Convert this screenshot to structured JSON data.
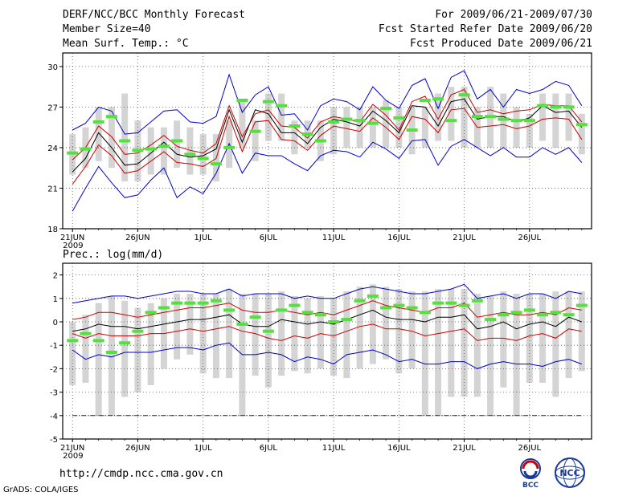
{
  "header": {
    "title": "DERF/NCC/BCC Monthly Forecast",
    "member_size": "Member Size=40",
    "variable": "Mean Surf. Temp.: °C",
    "period": "For 2009/06/21-2009/07/30",
    "started": "Fcst Started Refer Date 2009/06/20",
    "produced": "Fcst Produced Date 2009/06/21"
  },
  "footer": {
    "url": "http://cmdp.ncc.cma.gov.cn",
    "credit": "GrADS: COLA/IGES",
    "logo_bcc": "BCC",
    "logo_ncc": "NCC"
  },
  "colors": {
    "band": "#d4d4d4",
    "median": "#000000",
    "quartile": "#cc0000",
    "extreme": "#0000cc",
    "marker": "#55e040",
    "grid": "#555555"
  },
  "chart_data": [
    {
      "type": "line",
      "title": "Mean Surf. Temp.: °C",
      "x_labels": [
        "21JUN",
        "26JUN",
        "1JUL",
        "6JUL",
        "11JUL",
        "16JUL",
        "21JUL",
        "26JUL"
      ],
      "x_year": "2009",
      "days": 40,
      "ylim": [
        18,
        31
      ],
      "yticks": [
        18,
        21,
        24,
        27,
        30
      ],
      "band_low": [
        22.0,
        22.5,
        23.0,
        22.5,
        21.5,
        21.5,
        22.0,
        22.0,
        22.5,
        22.0,
        22.0,
        21.5,
        22.5,
        24.0,
        23.0,
        24.5,
        24.5,
        23.5,
        24.0,
        23.0,
        23.5,
        24.0,
        24.0,
        24.0,
        24.0,
        24.0,
        23.5,
        24.0,
        24.5,
        24.5,
        24.0,
        24.0,
        24.0,
        24.0,
        24.0,
        24.0,
        24.5,
        24.0,
        24.5,
        23.5
      ],
      "band_high": [
        25.0,
        25.5,
        27.0,
        27.0,
        28.0,
        26.0,
        25.5,
        25.5,
        26.0,
        25.5,
        25.0,
        25.0,
        26.0,
        27.5,
        26.0,
        28.0,
        28.0,
        26.0,
        26.0,
        26.0,
        27.0,
        27.0,
        27.0,
        27.0,
        27.5,
        27.0,
        27.0,
        27.0,
        28.0,
        28.5,
        28.5,
        27.0,
        28.5,
        28.0,
        27.0,
        26.5,
        28.0,
        28.0,
        28.0,
        26.5
      ],
      "extreme_max": [
        25.3,
        25.8,
        27.0,
        26.7,
        25.0,
        25.1,
        25.9,
        26.7,
        26.8,
        25.9,
        25.8,
        26.3,
        29.4,
        26.6,
        27.9,
        28.5,
        26.4,
        26.5,
        25.3,
        27.1,
        27.6,
        27.4,
        26.8,
        28.5,
        27.5,
        26.9,
        28.6,
        29.1,
        26.9,
        29.2,
        29.7,
        27.6,
        28.3,
        27.0,
        28.3,
        28.0,
        28.3,
        28.9,
        28.6,
        27.1
      ],
      "q_high": [
        23.1,
        24.0,
        25.6,
        24.8,
        23.5,
        23.6,
        24.2,
        24.9,
        24.1,
        23.8,
        23.6,
        24.3,
        27.1,
        24.8,
        26.5,
        26.8,
        25.6,
        25.5,
        24.7,
        25.9,
        26.3,
        26.1,
        25.9,
        27.2,
        26.4,
        25.3,
        27.4,
        27.8,
        26.1,
        27.9,
        28.3,
        26.6,
        26.8,
        26.5,
        26.7,
        26.8,
        27.2,
        27.1,
        27.1,
        25.9
      ],
      "median": [
        22.2,
        23.2,
        25.1,
        24.0,
        22.7,
        22.8,
        23.6,
        24.4,
        23.5,
        23.3,
        23.4,
        23.9,
        26.8,
        24.4,
        26.8,
        26.5,
        25.1,
        25.1,
        24.3,
        25.5,
        26.1,
        25.9,
        25.6,
        26.7,
        26.0,
        25.1,
        27.1,
        27.0,
        25.6,
        27.4,
        27.6,
        26.1,
        26.3,
        26.3,
        25.9,
        26.2,
        27.1,
        26.6,
        26.7,
        25.5
      ],
      "q_low": [
        21.3,
        22.6,
        24.2,
        23.4,
        22.1,
        22.3,
        23.0,
        23.7,
        22.9,
        22.8,
        22.6,
        23.2,
        26.3,
        23.7,
        25.9,
        26.0,
        24.6,
        24.5,
        23.8,
        24.9,
        25.6,
        25.4,
        25.2,
        26.2,
        25.5,
        24.6,
        26.3,
        26.1,
        25.1,
        26.8,
        26.9,
        25.5,
        25.6,
        25.7,
        25.4,
        25.6,
        26.1,
        26.2,
        26.1,
        24.6
      ],
      "extreme_min": [
        19.3,
        21.0,
        22.6,
        21.4,
        20.3,
        20.5,
        21.6,
        22.5,
        20.3,
        21.1,
        20.6,
        22.1,
        24.3,
        22.1,
        23.6,
        23.4,
        23.4,
        22.8,
        22.3,
        23.4,
        23.8,
        23.7,
        23.3,
        24.4,
        23.9,
        23.2,
        24.5,
        24.6,
        22.7,
        24.1,
        24.6,
        24.0,
        23.4,
        24.0,
        23.3,
        23.3,
        24.0,
        23.5,
        24.0,
        22.9
      ],
      "markers": [
        23.6,
        23.9,
        25.9,
        26.3,
        24.5,
        23.8,
        23.9,
        24.1,
        24.5,
        23.5,
        23.2,
        22.8,
        24.0,
        27.5,
        25.2,
        27.4,
        27.1,
        25.6,
        25.0,
        24.5,
        25.9,
        26.1,
        26.0,
        25.8,
        26.9,
        26.2,
        25.3,
        27.5,
        27.6,
        26.0,
        27.9,
        26.3,
        26.3,
        26.1,
        26.0,
        26.0,
        27.1,
        27.0,
        27.0,
        25.7
      ]
    },
    {
      "type": "line",
      "title": "Prec.: log(mm/d)",
      "x_labels": [
        "21JUN",
        "26JUN",
        "1JUL",
        "6JUL",
        "11JUL",
        "16JUL",
        "21JUL",
        "26JUL"
      ],
      "x_year": "2009",
      "days": 40,
      "ylim": [
        -5,
        2.5
      ],
      "yticks": [
        -5,
        -4,
        -3,
        -2,
        -1,
        0,
        1,
        2
      ],
      "band_low": [
        -2.7,
        -2.6,
        -4.0,
        -4.0,
        -3.2,
        -3.0,
        -2.7,
        -2.0,
        -1.6,
        -1.4,
        -2.2,
        -2.4,
        -2.4,
        -4.0,
        -2.3,
        -2.8,
        -2.3,
        -2.1,
        -2.2,
        -2.0,
        -2.3,
        -2.4,
        -2.0,
        -1.8,
        -1.6,
        -2.2,
        -2.0,
        -4.0,
        -4.0,
        -3.2,
        -3.2,
        -3.2,
        -4.0,
        -2.8,
        -4.0,
        -2.6,
        -2.6,
        -3.2,
        -2.4,
        -2.1
      ],
      "band_high": [
        0.0,
        0.3,
        0.8,
        1.1,
        0.9,
        0.6,
        0.8,
        1.0,
        1.2,
        1.2,
        1.2,
        1.2,
        1.4,
        1.2,
        1.2,
        1.2,
        1.3,
        1.1,
        1.0,
        1.1,
        1.0,
        1.3,
        1.5,
        1.6,
        1.5,
        1.4,
        1.3,
        1.3,
        1.4,
        1.4,
        1.4,
        1.2,
        1.1,
        1.3,
        1.2,
        1.2,
        1.2,
        1.3,
        1.3,
        1.3
      ],
      "extreme_max": [
        0.8,
        0.9,
        1.0,
        1.1,
        1.1,
        1.0,
        1.1,
        1.2,
        1.3,
        1.3,
        1.2,
        1.2,
        1.4,
        1.1,
        1.2,
        1.2,
        1.2,
        1.0,
        1.1,
        1.0,
        1.0,
        1.2,
        1.4,
        1.5,
        1.4,
        1.3,
        1.2,
        1.2,
        1.3,
        1.4,
        1.6,
        1.0,
        1.1,
        1.2,
        1.0,
        1.2,
        1.2,
        1.0,
        1.3,
        1.2
      ],
      "q_high": [
        0.1,
        0.2,
        0.4,
        0.4,
        0.3,
        0.2,
        0.3,
        0.4,
        0.5,
        0.6,
        0.6,
        0.7,
        0.8,
        0.5,
        0.4,
        0.4,
        0.5,
        0.4,
        0.3,
        0.4,
        0.3,
        0.5,
        0.7,
        0.9,
        0.7,
        0.6,
        0.5,
        0.4,
        0.6,
        0.6,
        0.8,
        0.2,
        0.3,
        0.4,
        0.3,
        0.3,
        0.4,
        0.3,
        0.6,
        0.5
      ],
      "median": [
        -0.4,
        -0.3,
        -0.1,
        -0.2,
        -0.2,
        -0.3,
        -0.2,
        -0.1,
        0.0,
        0.1,
        0.1,
        0.2,
        0.3,
        -0.1,
        -0.2,
        -0.2,
        0.1,
        0.0,
        -0.1,
        0.0,
        -0.1,
        0.1,
        0.3,
        0.5,
        0.2,
        0.1,
        0.1,
        0.0,
        0.2,
        0.2,
        0.3,
        -0.3,
        -0.2,
        0.0,
        -0.3,
        -0.1,
        0.0,
        -0.2,
        0.2,
        0.0
      ],
      "q_low": [
        -0.5,
        -0.7,
        -0.5,
        -0.6,
        -0.6,
        -0.6,
        -0.5,
        -0.5,
        -0.4,
        -0.3,
        -0.4,
        -0.3,
        -0.2,
        -0.4,
        -0.5,
        -0.7,
        -0.8,
        -0.6,
        -0.7,
        -0.5,
        -0.6,
        -0.4,
        -0.2,
        -0.1,
        -0.3,
        -0.3,
        -0.4,
        -0.6,
        -0.5,
        -0.4,
        -0.3,
        -0.8,
        -0.7,
        -0.7,
        -0.8,
        -0.6,
        -0.5,
        -0.7,
        -0.3,
        -0.4
      ],
      "extreme_min": [
        -1.2,
        -1.6,
        -1.4,
        -1.5,
        -1.3,
        -1.3,
        -1.3,
        -1.2,
        -1.1,
        -1.1,
        -1.2,
        -1.0,
        -0.9,
        -1.4,
        -1.4,
        -1.3,
        -1.4,
        -1.7,
        -1.5,
        -1.6,
        -1.8,
        -1.4,
        -1.3,
        -1.2,
        -1.4,
        -1.7,
        -1.6,
        -1.8,
        -1.8,
        -1.7,
        -1.7,
        -2.0,
        -1.8,
        -1.7,
        -1.8,
        -1.8,
        -1.9,
        -1.7,
        -1.6,
        -1.8
      ],
      "markers": [
        -0.8,
        -0.5,
        -0.8,
        -1.3,
        -0.9,
        -0.4,
        0.4,
        0.6,
        0.8,
        0.8,
        0.8,
        0.9,
        0.5,
        -0.1,
        0.2,
        -0.4,
        0.5,
        0.7,
        0.4,
        0.3,
        0.0,
        0.1,
        0.9,
        1.1,
        0.6,
        0.7,
        0.6,
        0.4,
        0.8,
        0.8,
        0.7,
        0.9,
        0.1,
        0.3,
        0.4,
        0.5,
        0.3,
        0.4,
        0.3,
        0.7
      ],
      "floor_line": -4
    }
  ]
}
